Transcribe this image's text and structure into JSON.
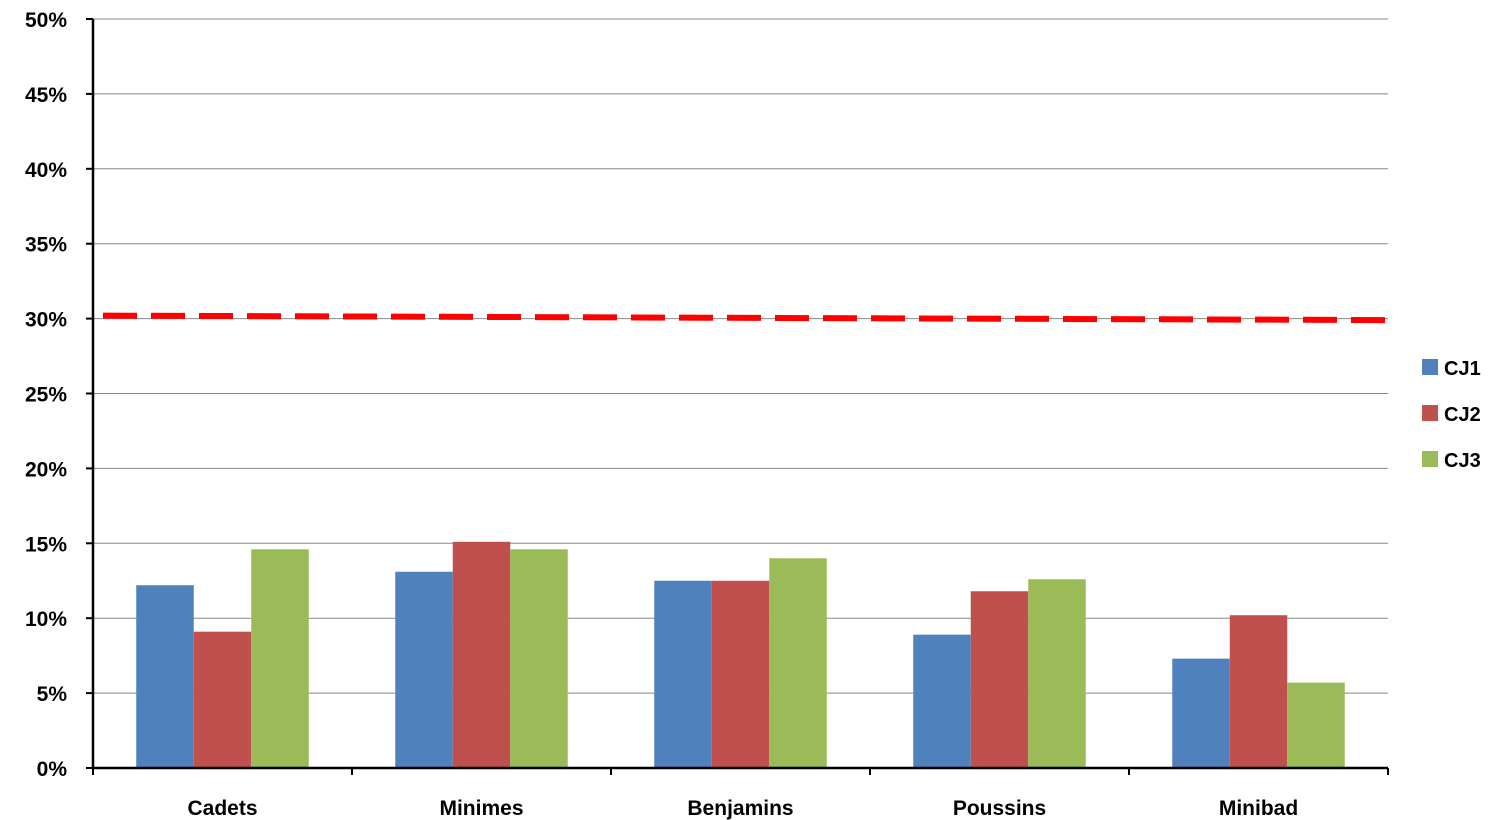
{
  "chart_data": {
    "type": "bar",
    "categories": [
      "Cadets",
      "Minimes",
      "Benjamins",
      "Poussins",
      "Minibad"
    ],
    "series": [
      {
        "name": "CJ1",
        "color": "#4F81BD",
        "values": [
          12.2,
          13.1,
          12.5,
          8.9,
          7.3
        ]
      },
      {
        "name": "CJ2",
        "color": "#C0504D",
        "values": [
          9.1,
          15.1,
          12.5,
          11.8,
          10.2
        ]
      },
      {
        "name": "CJ3",
        "color": "#9BBB59",
        "values": [
          14.6,
          14.6,
          14.0,
          12.6,
          5.7
        ]
      }
    ],
    "reference_line": {
      "value_start": 30.2,
      "value_end": 29.9,
      "color": "#FF0000",
      "style": "dashed"
    },
    "ylim": [
      0,
      50
    ],
    "yticks": [
      0,
      5,
      10,
      15,
      20,
      25,
      30,
      35,
      40,
      45,
      50
    ],
    "ytick_labels": [
      "0%",
      "5%",
      "10%",
      "15%",
      "20%",
      "25%",
      "30%",
      "35%",
      "40%",
      "45%",
      "50%"
    ],
    "grid": true,
    "legend_position": "right",
    "title": "",
    "xlabel": "",
    "ylabel": ""
  }
}
